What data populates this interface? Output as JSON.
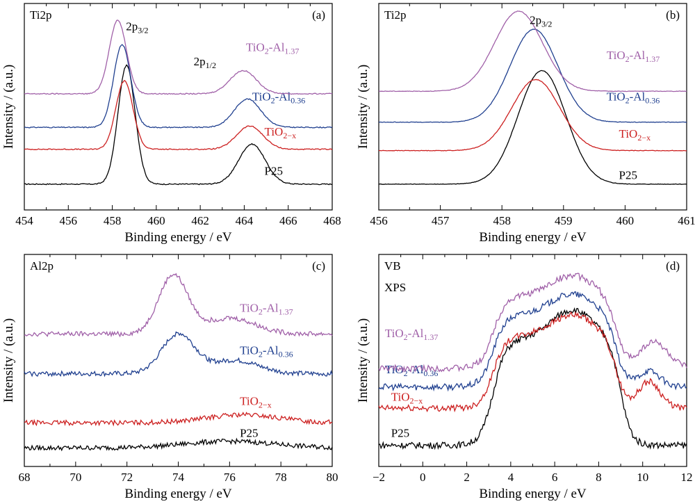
{
  "colors": {
    "P25": "#000000",
    "TiO2-x": "#cc1f1f",
    "TiO2-Al0.36": "#1f3f8f",
    "TiO2-Al1.37": "#a060a8"
  },
  "chart_data": [
    {
      "panel": "(a)",
      "type": "line",
      "corner_title": "Ti2p",
      "xlabel": "Binding energy / eV",
      "ylabel": "Intensity / (a.u.)",
      "xlim": [
        454,
        468
      ],
      "xticks": [
        "454",
        "456",
        "458",
        "460",
        "462",
        "464",
        "466",
        "468"
      ],
      "annotations": [
        {
          "text": "2p",
          "sub": "3/2",
          "x": 459.0
        },
        {
          "text": "2p",
          "sub": "1/2",
          "x": 461.6
        }
      ],
      "series": [
        {
          "name": "P25",
          "name_main": "P25",
          "name_sub": "",
          "color": "#000000",
          "baseline": 1.0,
          "peaks": [
            [
              458.65,
              4.6,
              0.55
            ],
            [
              464.35,
              1.55,
              0.85
            ]
          ]
        },
        {
          "name": "TiO2-x",
          "name_main": "TiO",
          "name_sub": "2−x",
          "color": "#cc1f1f",
          "baseline": 2.35,
          "peaks": [
            [
              458.55,
              2.65,
              0.55
            ],
            [
              464.25,
              0.9,
              0.85
            ]
          ]
        },
        {
          "name": "TiO2-Al0.36",
          "name_main": "TiO",
          "name_mid": "2",
          "name_tail": "-Al",
          "name_sub": "0.36",
          "color": "#1f3f8f",
          "baseline": 3.2,
          "peaks": [
            [
              458.45,
              3.2,
              0.55
            ],
            [
              464.15,
              1.1,
              0.85
            ]
          ]
        },
        {
          "name": "TiO2-Al1.37",
          "name_main": "TiO",
          "name_mid": "2",
          "name_tail": "-Al",
          "name_sub": "1.37",
          "color": "#a060a8",
          "baseline": 4.5,
          "peaks": [
            [
              458.25,
              2.85,
              0.55
            ],
            [
              463.95,
              0.9,
              0.85
            ]
          ]
        }
      ]
    },
    {
      "panel": "(b)",
      "type": "line",
      "corner_title": "Ti2p",
      "xlabel": "Binding energy / eV",
      "ylabel": "Intensity / (a.u.)",
      "xlim": [
        456,
        461
      ],
      "xticks": [
        "456",
        "457",
        "458",
        "459",
        "460",
        "461"
      ],
      "annotations": [
        {
          "text": "2p",
          "sub": "3/2",
          "x": 458.55
        }
      ],
      "series": [
        {
          "name": "P25",
          "name_main": "P25",
          "name_sub": "",
          "color": "#000000",
          "baseline": 1.0,
          "peaks": [
            [
              458.65,
              4.4,
              0.55
            ]
          ]
        },
        {
          "name": "TiO2-x",
          "name_main": "TiO",
          "name_sub": "2−x",
          "color": "#cc1f1f",
          "baseline": 2.3,
          "peaks": [
            [
              458.55,
              2.75,
              0.55
            ]
          ]
        },
        {
          "name": "TiO2-Al0.36",
          "name_main": "TiO",
          "name_mid": "2",
          "name_tail": "-Al",
          "name_sub": "0.36",
          "color": "#1f3f8f",
          "baseline": 3.4,
          "peaks": [
            [
              458.52,
              3.6,
              0.55
            ]
          ]
        },
        {
          "name": "TiO2-Al1.37",
          "name_main": "TiO",
          "name_mid": "2",
          "name_tail": "-Al",
          "name_sub": "1.37",
          "color": "#a060a8",
          "baseline": 4.6,
          "peaks": [
            [
              458.27,
              3.1,
              0.55
            ]
          ]
        }
      ]
    },
    {
      "panel": "(c)",
      "type": "line",
      "corner_title": "Al2p",
      "xlabel": "Binding energy / eV",
      "ylabel": "Intensity / (a.u.)",
      "xlim": [
        68,
        80
      ],
      "xticks": [
        "68",
        "70",
        "72",
        "74",
        "76",
        "78",
        "80"
      ],
      "annotations": [],
      "series": [
        {
          "name": "P25",
          "name_main": "P25",
          "name_sub": "",
          "color": "#000000",
          "baseline": 0.7,
          "peaks": [
            [
              76.0,
              0.25,
              2.5
            ]
          ]
        },
        {
          "name": "TiO2-x",
          "name_main": "TiO",
          "name_sub": "2−x",
          "color": "#cc1f1f",
          "baseline": 1.65,
          "peaks": [
            [
              76.5,
              0.3,
              2.0
            ]
          ]
        },
        {
          "name": "TiO2-Al0.36",
          "name_main": "TiO",
          "name_mid": "2",
          "name_tail": "-Al",
          "name_sub": "0.36",
          "color": "#1f3f8f",
          "baseline": 3.5,
          "peaks": [
            [
              74.0,
              1.5,
              0.9
            ],
            [
              76.2,
              0.5,
              1.3
            ]
          ]
        },
        {
          "name": "TiO2-Al1.37",
          "name_main": "TiO",
          "name_mid": "2",
          "name_tail": "-Al",
          "name_sub": "1.37",
          "color": "#a060a8",
          "baseline": 5.0,
          "peaks": [
            [
              73.8,
              2.2,
              0.8
            ],
            [
              76.0,
              0.6,
              1.4
            ]
          ]
        }
      ]
    },
    {
      "panel": "(d)",
      "type": "line",
      "corner_title": "VB",
      "corner_title2": "XPS",
      "xlabel": "Binding energy / eV",
      "ylabel": "Intensity / (a.u.)",
      "xlim": [
        -2,
        12
      ],
      "xticks": [
        "−2",
        "0",
        "2",
        "4",
        "6",
        "8",
        "10",
        "12"
      ],
      "annotations": [],
      "series": [
        {
          "name": "P25",
          "name_main": "P25",
          "name_sub": "",
          "color": "#000000",
          "baseline": 0.8,
          "vb": [
            2.5,
            9.0,
            5.1
          ]
        },
        {
          "name": "TiO2-x",
          "name_main": "TiO",
          "name_sub": "2−x",
          "color": "#cc1f1f",
          "baseline": 2.2,
          "vb": [
            2.5,
            8.8,
            3.5
          ],
          "extra": [
            [
              10.3,
              1.0,
              0.7
            ]
          ]
        },
        {
          "name": "TiO2-Al0.36",
          "name_main": "TiO",
          "name_mid": "2",
          "name_tail": "-Al",
          "name_sub": "0.36",
          "color": "#1f3f8f",
          "baseline": 3.0,
          "vb": [
            2.5,
            8.8,
            3.5
          ],
          "extra": [
            [
              10.3,
              0.6,
              0.7
            ]
          ]
        },
        {
          "name": "TiO2-Al1.37",
          "name_main": "TiO",
          "name_mid": "2",
          "name_tail": "-Al",
          "name_sub": "1.37",
          "color": "#a060a8",
          "baseline": 3.7,
          "vb": [
            2.5,
            8.8,
            3.5
          ],
          "extra": [
            [
              10.5,
              1.0,
              0.9
            ]
          ]
        }
      ]
    }
  ]
}
